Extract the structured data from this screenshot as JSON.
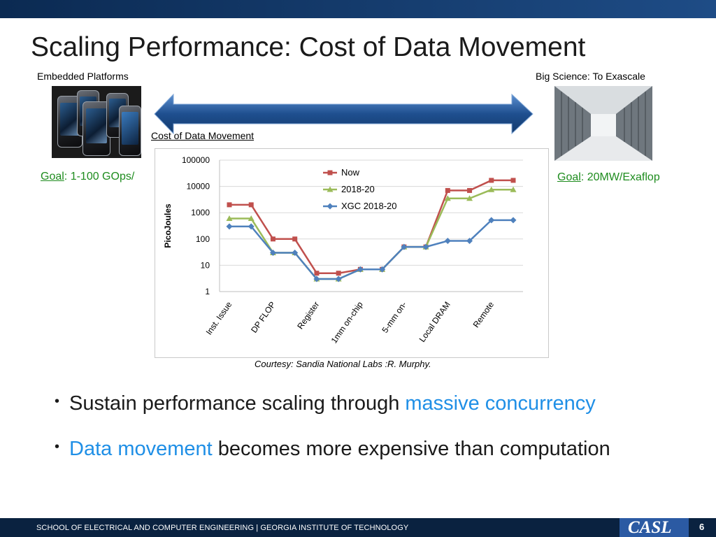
{
  "slide": {
    "title": "Scaling Performance: Cost of Data Movement",
    "left_caption": "Embedded Platforms",
    "right_caption": "Big Science: To Exascale",
    "arrow_label": "Cost of Data Movement",
    "goal_left_prefix": "Goal",
    "goal_left_rest": ": 1-100 GOps/",
    "goal_right_prefix": "Goal",
    "goal_right_rest": ": 20MW/Exaflop",
    "courtesy": "Courtesy: Sandia National Labs :R.  Murphy."
  },
  "bullets": [
    {
      "parts": [
        {
          "text": "Sustain performance scaling through ",
          "accent": false
        },
        {
          "text": "massive concurrency",
          "accent": true
        }
      ]
    },
    {
      "parts": [
        {
          "text": "Data movement",
          "accent": true
        },
        {
          "text": " becomes more expensive than computation",
          "accent": false
        }
      ]
    }
  ],
  "footer": {
    "text": "SCHOOL OF ELECTRICAL AND COMPUTER ENGINEERING | GEORGIA INSTITUTE OF TECHNOLOGY",
    "logo": "CASL",
    "page": "6"
  },
  "colors": {
    "accent_blue": "#1f8fe6",
    "goal_green": "#1e8c1e",
    "now": "#c0504d",
    "y2018": "#9bbb59",
    "xgc": "#4f81bd"
  },
  "chart_data": {
    "type": "line",
    "ylabel": "PicoJoules",
    "ylog": true,
    "ylim": [
      1,
      100000
    ],
    "yticks": [
      "100000",
      "10000",
      "1000",
      "100",
      "10",
      "1"
    ],
    "categories": [
      "Inst. Issue",
      "",
      "DP FLOP",
      "",
      "Register",
      "",
      "1mm on-chip",
      "",
      "5-mm on-",
      "",
      "Local DRAM",
      "",
      "Remote",
      ""
    ],
    "series": [
      {
        "name": "Now",
        "color": "#c0504d",
        "marker": "square",
        "values": [
          2000,
          2000,
          100,
          100,
          5,
          5,
          7,
          7,
          50,
          50,
          7000,
          7000,
          17000,
          17000
        ]
      },
      {
        "name": "2018-20",
        "color": "#9bbb59",
        "marker": "triangle",
        "values": [
          600,
          600,
          30,
          30,
          3,
          3,
          7,
          7,
          50,
          50,
          3500,
          3500,
          7500,
          7500
        ]
      },
      {
        "name": "XGC 2018-20",
        "color": "#4f81bd",
        "marker": "diamond",
        "values": [
          300,
          300,
          30,
          30,
          3,
          3,
          7,
          7,
          50,
          50,
          85,
          85,
          520,
          520
        ]
      }
    ],
    "legend_position": "top-center",
    "grid": true
  }
}
